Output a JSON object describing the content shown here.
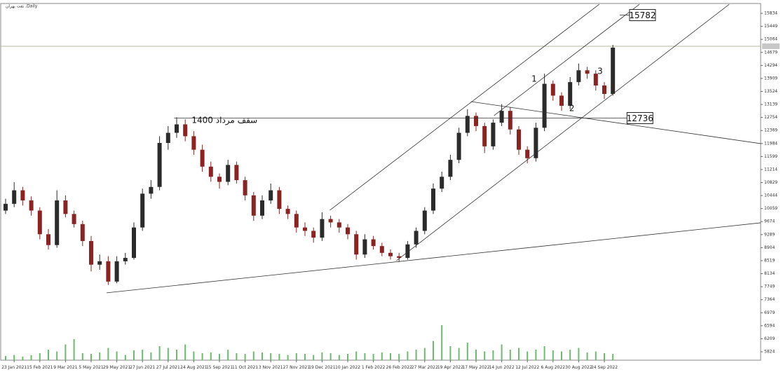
{
  "chart_data": {
    "type": "candlestick",
    "title": "نفت بهران ,Daily",
    "categories": [
      null,
      "23 Jan 2021",
      null,
      null,
      "15 Feb 2021",
      null,
      null,
      "9 Mar 2021",
      null,
      null,
      "5 May 2021",
      null,
      null,
      "29 May 2021",
      null,
      null,
      "27 Jun 2021",
      null,
      null,
      "27 Jul 2021",
      null,
      null,
      "24 Aug 2021",
      null,
      null,
      "15 Sep 2021",
      null,
      null,
      "11 Oct 2021",
      null,
      null,
      "3 Nov 2021",
      null,
      null,
      "27 Nov 2021",
      null,
      null,
      "19 Dec 2021",
      null,
      null,
      "10 Jan 2022",
      null,
      null,
      "1 Feb 2022",
      null,
      null,
      "26 Feb 2022",
      null,
      null,
      "27 Mar 2022",
      null,
      null,
      "19 Apr 2022",
      null,
      null,
      "17 May 2022",
      null,
      null,
      "14 Jun 2022",
      null,
      null,
      "12 Jul 2022",
      null,
      null,
      "6 Aug 2022",
      null,
      null,
      "30 Aug 2022",
      null,
      null,
      "24 Sep 2022",
      null
    ],
    "open": [
      10000,
      10200,
      10600,
      10300,
      10000,
      9300,
      8980,
      10300,
      9900,
      9600,
      9100,
      8400,
      8500,
      7900,
      8500,
      8600,
      9500,
      10500,
      10700,
      12000,
      12300,
      12550,
      12200,
      11800,
      11300,
      11000,
      10850,
      11350,
      10900,
      10450,
      9850,
      10300,
      10600,
      10050,
      9900,
      9500,
      9400,
      9200,
      9750,
      9650,
      9500,
      9300,
      8700,
      9150,
      8950,
      8750,
      8650,
      8600,
      9000,
      9400,
      10000,
      10650,
      11000,
      11500,
      12300,
      12800,
      12500,
      11900,
      12600,
      12950,
      12400,
      11800,
      11550,
      12450,
      13750,
      13400,
      13100,
      13800,
      14150,
      14050,
      13700,
      13450
    ],
    "high": [
      10350,
      10840,
      10700,
      10420,
      10100,
      9450,
      10600,
      10450,
      10000,
      9700,
      9250,
      8700,
      8650,
      8650,
      8750,
      9650,
      10650,
      10900,
      12200,
      12500,
      12760,
      12700,
      12350,
      11950,
      11450,
      11100,
      11500,
      11450,
      11000,
      10550,
      10450,
      10800,
      10700,
      10150,
      10000,
      9650,
      9500,
      9950,
      9850,
      9750,
      9600,
      9400,
      9300,
      9250,
      9050,
      8850,
      8750,
      9100,
      9500,
      10100,
      10800,
      11150,
      11650,
      12450,
      13000,
      12900,
      12600,
      12700,
      13150,
      13050,
      12500,
      11900,
      12600,
      14050,
      13850,
      13500,
      13950,
      14350,
      14250,
      14150,
      13800,
      14900
    ],
    "low": [
      9900,
      10100,
      10150,
      9850,
      9150,
      8850,
      8900,
      9800,
      9500,
      8950,
      8200,
      8250,
      7800,
      7850,
      8400,
      8550,
      9400,
      10350,
      10600,
      11800,
      12150,
      12050,
      11650,
      11150,
      10850,
      10650,
      10750,
      10800,
      10300,
      9700,
      9750,
      10200,
      9900,
      9750,
      9350,
      9250,
      9050,
      9100,
      9500,
      9350,
      9150,
      8550,
      8600,
      8850,
      8650,
      8550,
      8480,
      8550,
      8900,
      9300,
      9900,
      10550,
      10900,
      11400,
      12200,
      12350,
      11700,
      11800,
      12500,
      12250,
      11650,
      11400,
      11450,
      12350,
      13250,
      12950,
      13000,
      13700,
      13900,
      13550,
      13300,
      13400
    ],
    "close": [
      10200,
      10600,
      10300,
      10000,
      9300,
      8980,
      10300,
      9900,
      9600,
      9100,
      8400,
      8500,
      7900,
      8500,
      8600,
      9500,
      10500,
      10700,
      12000,
      12300,
      12550,
      12200,
      11800,
      11300,
      11000,
      10850,
      11350,
      10900,
      10450,
      9850,
      10300,
      10600,
      10050,
      9900,
      9500,
      9400,
      9200,
      9750,
      9650,
      9500,
      9300,
      8700,
      9150,
      8950,
      8750,
      8650,
      8600,
      9000,
      9400,
      10000,
      10650,
      11000,
      11500,
      12300,
      12800,
      12500,
      11900,
      12600,
      12950,
      12400,
      11800,
      11550,
      12450,
      13750,
      13400,
      13100,
      13800,
      14150,
      14050,
      13700,
      13450,
      14820
    ],
    "volume": [
      12,
      15,
      10,
      14,
      20,
      30,
      25,
      45,
      60,
      20,
      18,
      22,
      35,
      25,
      15,
      28,
      30,
      22,
      40,
      35,
      30,
      45,
      25,
      20,
      22,
      18,
      30,
      20,
      18,
      25,
      22,
      20,
      18,
      15,
      20,
      18,
      15,
      22,
      20,
      15,
      18,
      25,
      20,
      18,
      22,
      20,
      18,
      25,
      30,
      35,
      55,
      100,
      40,
      35,
      50,
      30,
      25,
      28,
      45,
      30,
      35,
      25,
      30,
      40,
      28,
      25,
      30,
      35,
      22,
      25,
      20,
      18
    ],
    "up_color": "#2b2b2b",
    "down_color": "#8b2323",
    "volume_color": "#6dbb6d",
    "ylim": [
      5575,
      16125
    ],
    "yticks": [
      5824,
      6209,
      6594,
      6979,
      7364,
      7749,
      8134,
      8519,
      8904,
      9289,
      9674,
      10059,
      10444,
      10829,
      11214,
      11599,
      11984,
      12369,
      12754,
      13139,
      13524,
      13909,
      14294,
      14679,
      15064,
      15449,
      15834
    ],
    "current_price": 14860,
    "trend_lines": [
      {
        "x": [
          11.8,
          88.3
        ],
        "y": [
          7567,
          9639
        ]
      },
      {
        "x": [
          37.9,
          69.4
        ],
        "y": [
          10010,
          16100
        ]
      },
      {
        "x": [
          57.1,
          74.1
        ],
        "y": [
          12809,
          16100
        ]
      },
      {
        "x": [
          45.7,
          84.6
        ],
        "y": [
          8520,
          16100
        ]
      },
      {
        "x": [
          54.4,
          88.3
        ],
        "y": [
          13223,
          11980
        ]
      }
    ],
    "levels": [
      {
        "value": 12736,
        "x": [
          19.7,
          71.5
        ]
      },
      {
        "value": 15782,
        "x": [
          71.8,
          71.8
        ]
      }
    ],
    "annotations": [
      {
        "text": "سقف مرداد 1400",
        "x": 25.6,
        "y": 12660
      },
      {
        "text": "1",
        "x": 61.8,
        "y": 13886
      },
      {
        "text": "2",
        "x": 66.2,
        "y": 13016
      },
      {
        "text": "3",
        "x": 69.5,
        "y": 14114
      }
    ]
  }
}
